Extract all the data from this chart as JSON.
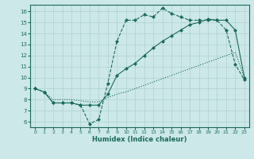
{
  "xlabel": "Humidex (Indice chaleur)",
  "bg_color": "#cce8e8",
  "line_color": "#1a6b5a",
  "grid_color": "#b0d0d0",
  "xlim": [
    -0.5,
    23.5
  ],
  "ylim": [
    5.5,
    16.6
  ],
  "yticks": [
    6,
    7,
    8,
    9,
    10,
    11,
    12,
    13,
    14,
    15,
    16
  ],
  "xticks": [
    0,
    1,
    2,
    3,
    4,
    5,
    6,
    7,
    8,
    9,
    10,
    11,
    12,
    13,
    14,
    15,
    16,
    17,
    18,
    19,
    20,
    21,
    22,
    23
  ],
  "line1_x": [
    0,
    1,
    2,
    3,
    4,
    5,
    6,
    7,
    8,
    9,
    10,
    11,
    12,
    13,
    14,
    15,
    16,
    17,
    18,
    19,
    20,
    21,
    22,
    23
  ],
  "line1_y": [
    9.0,
    8.7,
    7.7,
    7.7,
    7.7,
    7.5,
    5.8,
    6.2,
    9.5,
    13.3,
    15.2,
    15.2,
    15.7,
    15.5,
    16.3,
    15.8,
    15.5,
    15.2,
    15.2,
    15.2,
    15.2,
    14.3,
    11.2,
    9.8
  ],
  "line2_x": [
    0,
    1,
    2,
    3,
    4,
    5,
    6,
    7,
    8,
    9,
    10,
    11,
    12,
    13,
    14,
    15,
    16,
    17,
    18,
    19,
    20,
    21,
    22,
    23
  ],
  "line2_y": [
    9.0,
    8.7,
    7.7,
    7.7,
    7.7,
    7.5,
    7.5,
    7.5,
    8.5,
    10.2,
    10.8,
    11.3,
    12.0,
    12.7,
    13.3,
    13.8,
    14.3,
    14.8,
    15.0,
    15.3,
    15.2,
    15.2,
    14.3,
    10.0
  ],
  "line3_x": [
    0,
    1,
    2,
    3,
    4,
    5,
    6,
    7,
    8,
    9,
    10,
    11,
    12,
    13,
    14,
    15,
    16,
    17,
    18,
    19,
    20,
    21,
    22,
    23
  ],
  "line3_y": [
    9.0,
    8.7,
    8.0,
    8.0,
    8.0,
    7.9,
    7.8,
    7.8,
    8.2,
    8.5,
    8.7,
    9.0,
    9.3,
    9.6,
    9.9,
    10.2,
    10.5,
    10.8,
    11.1,
    11.4,
    11.7,
    12.0,
    12.3,
    10.0
  ]
}
